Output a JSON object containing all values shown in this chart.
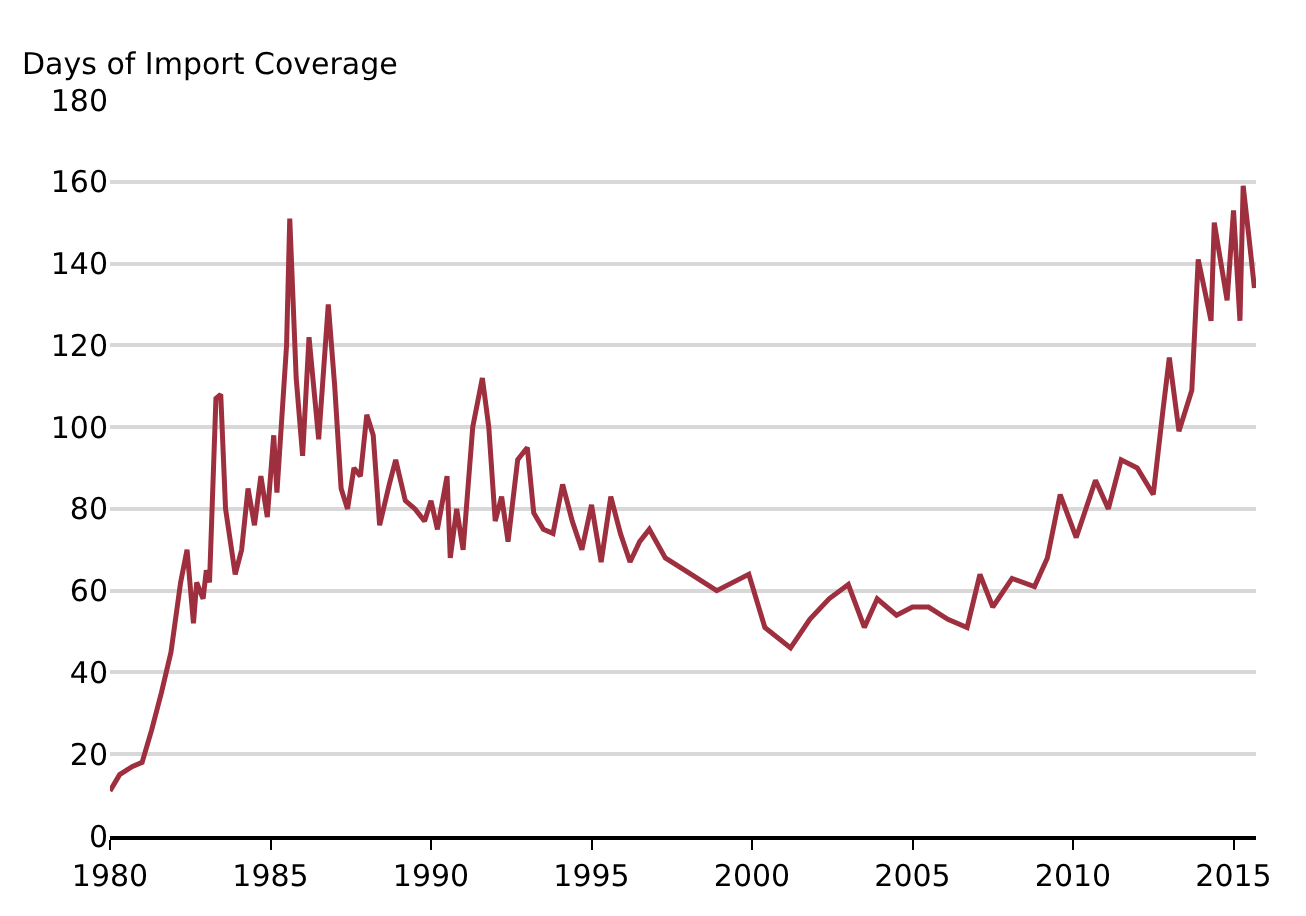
{
  "chart_data": {
    "type": "line",
    "ylabel": "Days of Import Coverage",
    "x": [
      1980,
      1980.3,
      1980.7,
      1981.0,
      1981.3,
      1981.6,
      1981.9,
      1982.2,
      1982.4,
      1982.6,
      1982.7,
      1982.9,
      1983.0,
      1983.1,
      1983.3,
      1983.45,
      1983.6,
      1983.9,
      1984.1,
      1984.3,
      1984.5,
      1984.7,
      1984.9,
      1985.1,
      1985.2,
      1985.5,
      1985.6,
      1985.8,
      1986.0,
      1986.2,
      1986.5,
      1986.8,
      1987.0,
      1987.2,
      1987.4,
      1987.6,
      1987.8,
      1988.0,
      1988.2,
      1988.4,
      1988.7,
      1988.9,
      1989.2,
      1989.5,
      1989.8,
      1990.0,
      1990.2,
      1990.5,
      1990.6,
      1990.8,
      1991.0,
      1991.3,
      1991.6,
      1991.8,
      1992.0,
      1992.2,
      1992.4,
      1992.7,
      1993.0,
      1993.2,
      1993.5,
      1993.8,
      1994.1,
      1994.4,
      1994.7,
      1995.0,
      1995.3,
      1995.6,
      1995.9,
      1996.2,
      1996.5,
      1996.8,
      1997.3,
      1997.9,
      1998.9,
      1999.9,
      2000.4,
      2001.2,
      2001.8,
      2002.4,
      2003.0,
      2003.5,
      2003.9,
      2004.5,
      2005.0,
      2005.5,
      2006.1,
      2006.7,
      2007.1,
      2007.5,
      2008.1,
      2008.8,
      2009.2,
      2009.6,
      2010.1,
      2010.7,
      2011.1,
      2011.5,
      2012.0,
      2012.5,
      2012.8,
      2013.0,
      2013.3,
      2013.7,
      2013.9,
      2014.3,
      2014.4,
      2014.8,
      2015.0,
      2015.2,
      2015.3,
      2015.5,
      2015.65
    ],
    "series": [
      {
        "color": "#9e2f3f",
        "values": [
          11,
          15,
          17,
          18,
          26,
          35,
          45,
          62,
          70,
          52,
          62,
          58,
          65,
          62,
          107,
          108,
          80,
          64,
          70,
          85,
          76,
          88,
          78,
          98,
          84,
          120,
          151,
          112,
          93,
          122,
          97,
          130,
          110,
          85,
          80,
          90,
          88,
          103,
          98,
          76,
          86,
          92,
          82,
          80,
          77,
          82,
          75,
          88,
          68,
          80,
          70,
          100,
          112,
          100,
          77,
          83,
          72,
          92,
          95,
          79,
          75,
          74,
          86,
          77,
          70,
          81,
          67,
          83,
          74,
          67,
          72,
          75,
          68,
          65,
          60,
          64,
          51,
          46,
          53,
          58,
          61.5,
          51,
          58,
          54,
          56,
          56,
          53,
          51,
          64,
          56,
          63,
          61,
          68,
          83.5,
          73,
          87,
          80,
          92,
          90,
          83.5,
          104,
          117,
          99,
          109,
          141,
          126,
          150,
          131,
          153,
          126,
          159,
          145,
          134
        ]
      }
    ],
    "xlim": [
      1980,
      2015.7
    ],
    "xticks": [
      1980,
      1985,
      1990,
      1995,
      2000,
      2005,
      2010,
      2015
    ],
    "ylim": [
      0,
      180
    ],
    "yticks": [
      0,
      20,
      40,
      60,
      80,
      100,
      120,
      140,
      160,
      180
    ],
    "grid": "y",
    "marker": "none",
    "line_style": "solid"
  }
}
